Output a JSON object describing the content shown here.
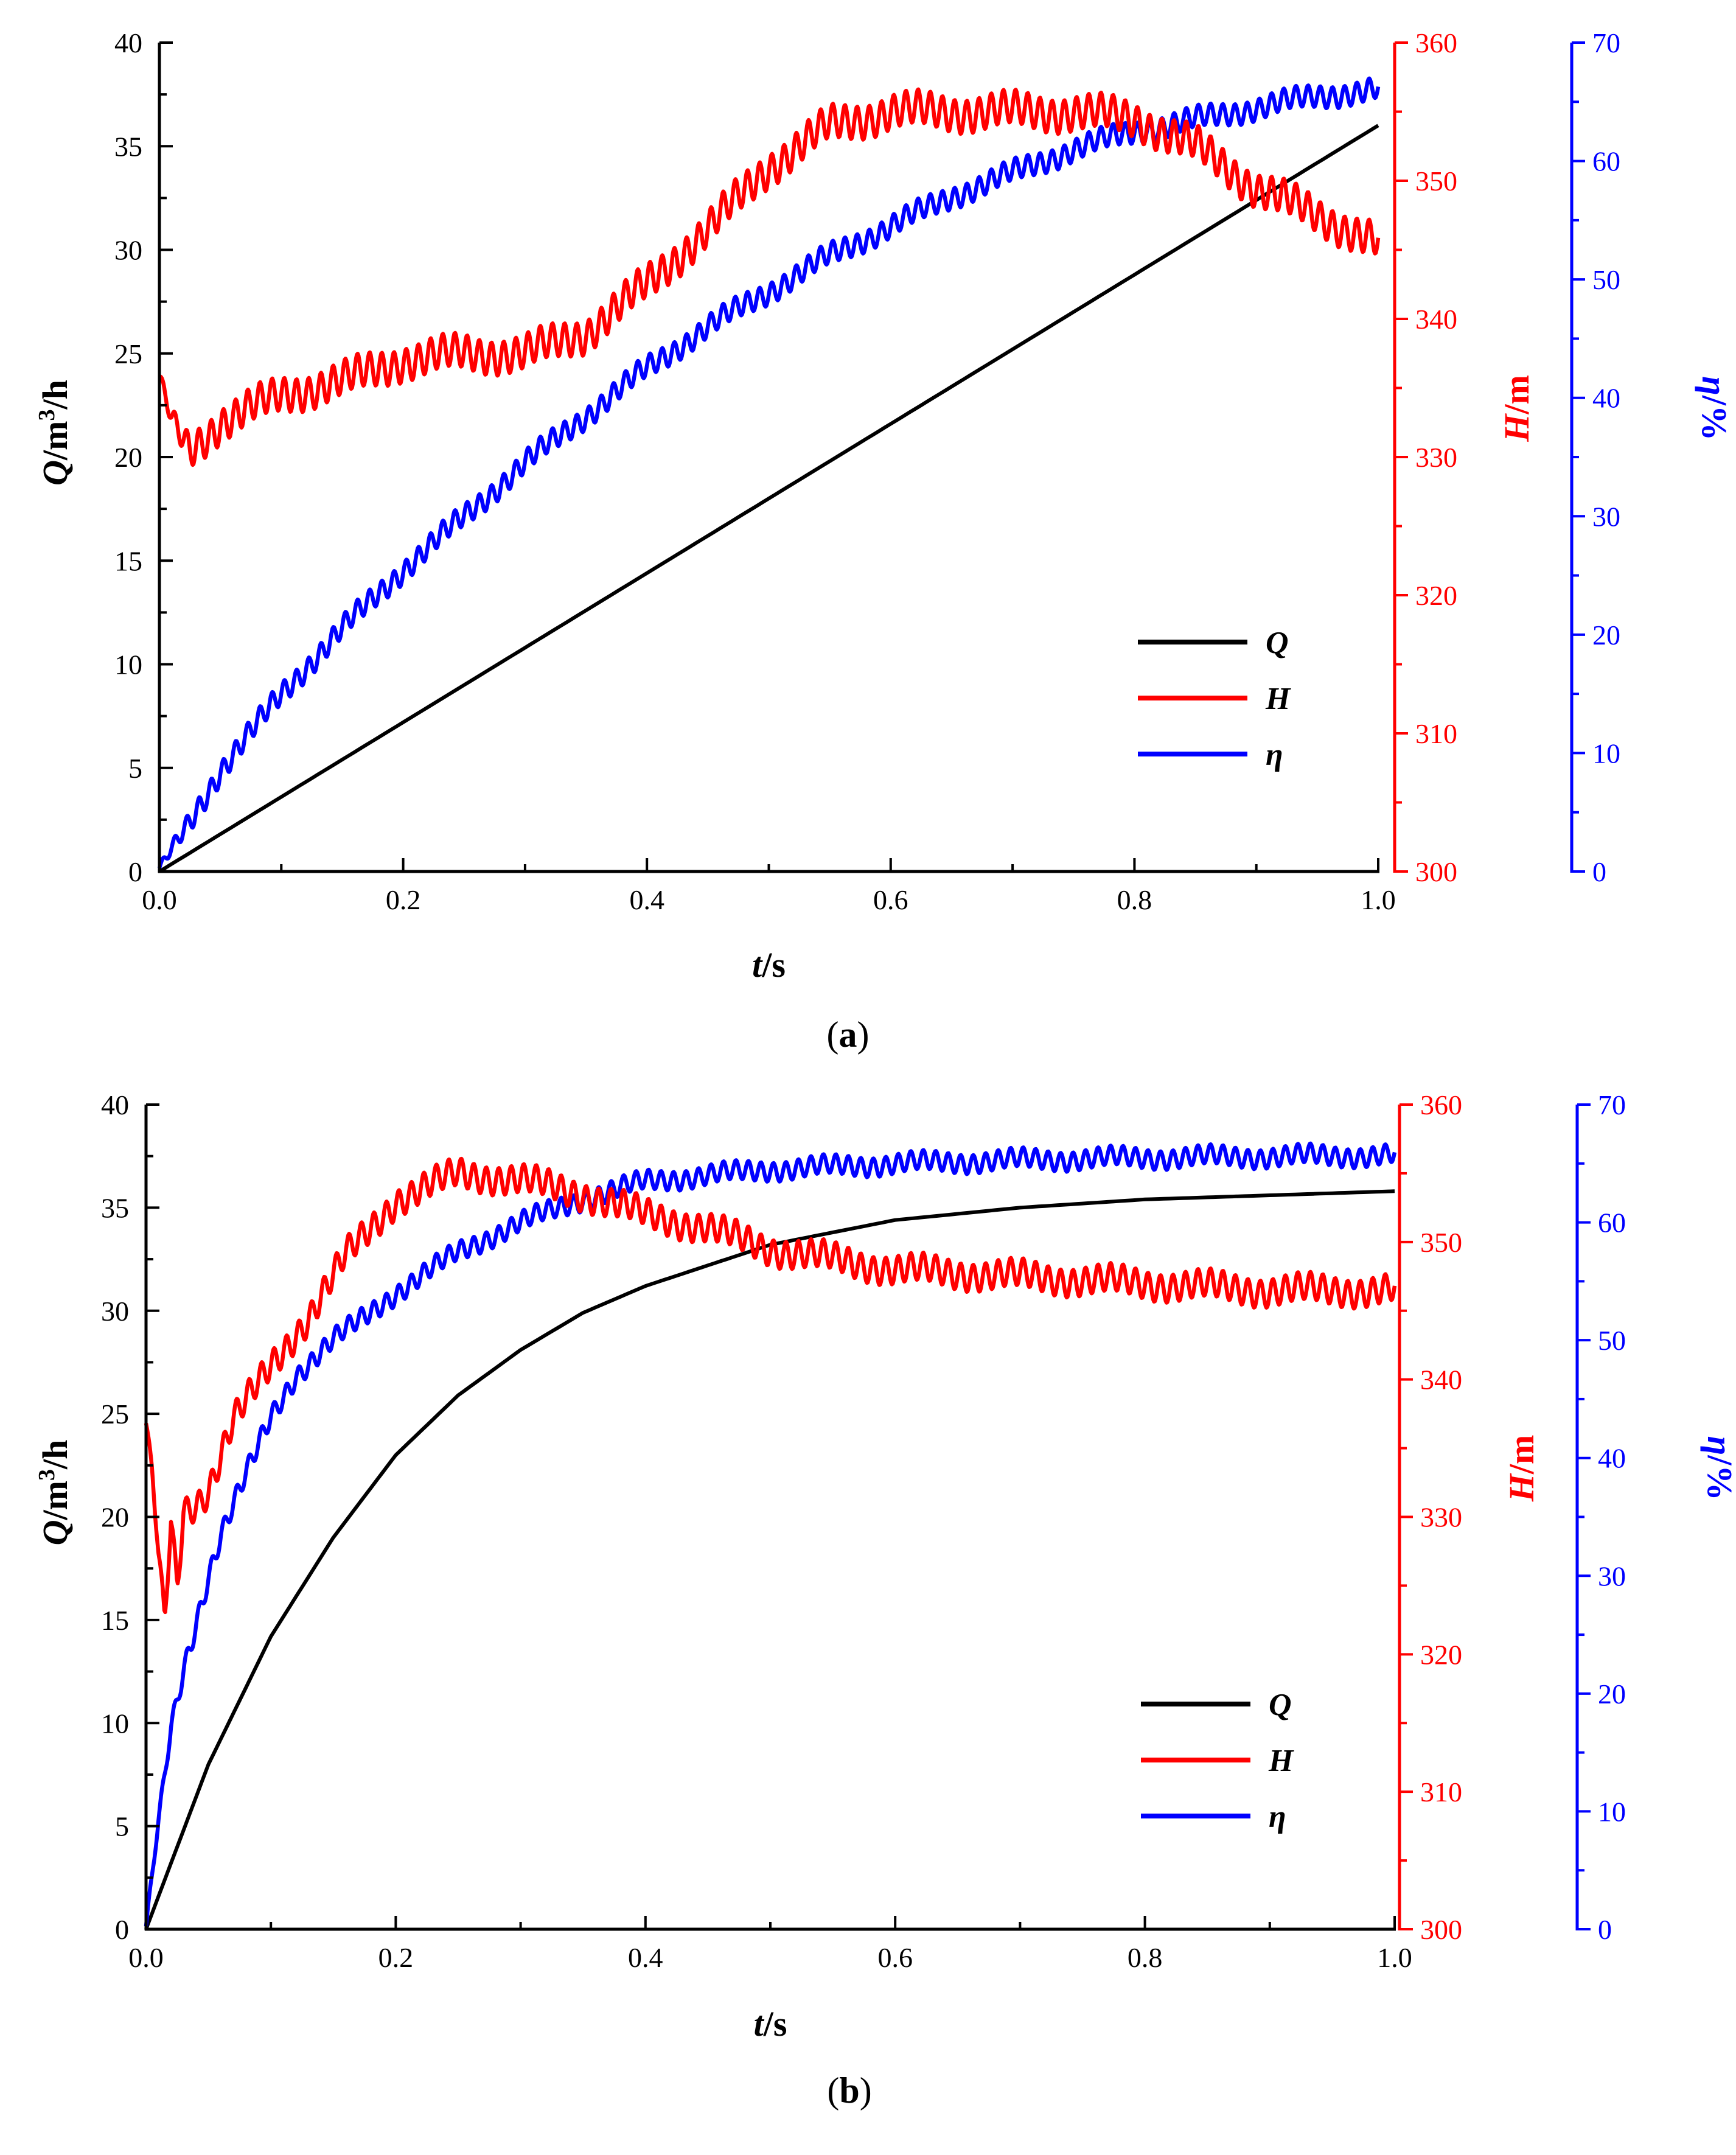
{
  "colors": {
    "Q": "#000000",
    "H": "#ff0000",
    "eta": "#0000ff"
  },
  "chart_data": [
    {
      "type": "line",
      "panel_caption": "(a)",
      "caption_parts": [
        "(",
        "a",
        ")"
      ],
      "x_range": [
        0,
        1
      ],
      "x_ticks": [
        "0.0",
        "0.2",
        "0.4",
        "0.6",
        "0.8",
        "1.0"
      ],
      "xlabel_parts": [
        "t",
        "/s"
      ],
      "ylim_left": [
        0,
        40
      ],
      "left_ticks": [
        "0",
        "5",
        "10",
        "15",
        "20",
        "25",
        "30",
        "35",
        "40"
      ],
      "ylabel_left_parts": [
        "Q",
        "/m",
        "3",
        "/h"
      ],
      "ylim_mid": [
        300,
        360
      ],
      "mid_ticks": [
        "300",
        "310",
        "320",
        "330",
        "340",
        "350",
        "360"
      ],
      "ylabel_mid_parts": [
        "H",
        "/m"
      ],
      "ylim_right": [
        0,
        70
      ],
      "right_ticks": [
        "0",
        "10",
        "20",
        "30",
        "40",
        "50",
        "60",
        "70"
      ],
      "ylabel_right_parts": [
        "η",
        "/%"
      ],
      "legend": [
        "Q",
        "H",
        "η"
      ],
      "series": [
        {
          "name": "Q",
          "axis": "left",
          "color": "#000000",
          "x": [
            0,
            0.1,
            0.2,
            0.3,
            0.4,
            0.5,
            0.6,
            0.7,
            0.8,
            0.9,
            1.0
          ],
          "values": [
            0,
            3.6,
            7.2,
            10.8,
            14.4,
            18,
            21.6,
            25.2,
            28.8,
            32.4,
            36
          ]
        },
        {
          "name": "H",
          "axis": "mid",
          "color": "#ff0000",
          "oscillation": 1.2,
          "x": [
            0,
            0.01,
            0.025,
            0.05,
            0.1,
            0.15,
            0.2,
            0.25,
            0.3,
            0.35,
            0.4,
            0.45,
            0.5,
            0.55,
            0.6,
            0.65,
            0.7,
            0.75,
            0.8,
            0.85,
            0.9,
            0.95,
            1.0
          ],
          "values": [
            335.5,
            332.5,
            330.5,
            332.5,
            334.5,
            335.5,
            337.0,
            337.5,
            337.5,
            339.0,
            342.5,
            346.5,
            351.0,
            354.0,
            355.0,
            355.0,
            355.0,
            355.0,
            354.5,
            352.5,
            349.5,
            347.5,
            345.5
          ]
        },
        {
          "name": "η",
          "axis": "right",
          "color": "#0000ff",
          "oscillation": 0.9,
          "x": [
            0,
            0.05,
            0.1,
            0.15,
            0.2,
            0.25,
            0.3,
            0.35,
            0.4,
            0.45,
            0.5,
            0.55,
            0.6,
            0.65,
            0.7,
            0.75,
            0.8,
            0.85,
            0.9,
            0.95,
            1.0
          ],
          "values": [
            0,
            8.5,
            15,
            20.5,
            25.5,
            30,
            34.5,
            38.5,
            42.5,
            46,
            49,
            52,
            54.5,
            57,
            59,
            61,
            62.5,
            63.5,
            64.5,
            65.5,
            66
          ]
        }
      ]
    },
    {
      "type": "line",
      "panel_caption": "(b)",
      "caption_parts": [
        "(",
        "b",
        ")"
      ],
      "x_range": [
        0,
        1
      ],
      "x_ticks": [
        "0.0",
        "0.2",
        "0.4",
        "0.6",
        "0.8",
        "1.0"
      ],
      "xlabel_parts": [
        "t",
        "/s"
      ],
      "ylim_left": [
        0,
        40
      ],
      "left_ticks": [
        "0",
        "5",
        "10",
        "15",
        "20",
        "25",
        "30",
        "35",
        "40"
      ],
      "ylabel_left_parts": [
        "Q",
        "/m",
        "3",
        "/h"
      ],
      "ylim_mid": [
        300,
        360
      ],
      "mid_ticks": [
        "300",
        "310",
        "320",
        "330",
        "340",
        "350",
        "360"
      ],
      "ylabel_mid_parts": [
        "H",
        "/m"
      ],
      "ylim_right": [
        0,
        70
      ],
      "right_ticks": [
        "0",
        "10",
        "20",
        "30",
        "40",
        "50",
        "60",
        "70"
      ],
      "ylabel_right_parts": [
        "η",
        "/%"
      ],
      "legend": [
        "Q",
        "H",
        "η"
      ],
      "series": [
        {
          "name": "Q",
          "axis": "left",
          "color": "#000000",
          "x": [
            0,
            0.05,
            0.1,
            0.15,
            0.2,
            0.25,
            0.3,
            0.35,
            0.4,
            0.5,
            0.6,
            0.7,
            0.8,
            0.9,
            1.0
          ],
          "values": [
            0,
            8,
            14.2,
            19,
            23,
            25.9,
            28.1,
            29.9,
            31.2,
            33.2,
            34.4,
            35,
            35.4,
            35.6,
            35.8
          ]
        },
        {
          "name": "H",
          "axis": "mid",
          "color": "#ff0000",
          "oscillation": 1.0,
          "x": [
            0,
            0.005,
            0.01,
            0.015,
            0.02,
            0.025,
            0.03,
            0.04,
            0.05,
            0.07,
            0.1,
            0.13,
            0.16,
            0.2,
            0.25,
            0.3,
            0.35,
            0.4,
            0.45,
            0.5,
            0.6,
            0.7,
            0.8,
            0.9,
            1.0
          ],
          "values": [
            336.5,
            333.0,
            327.0,
            322.5,
            329.5,
            325.0,
            330.5,
            331.0,
            332.0,
            337.0,
            341.0,
            344.5,
            349.0,
            353.0,
            355.0,
            354.5,
            353.5,
            352.0,
            351.0,
            349.5,
            348.0,
            347.5,
            347.0,
            346.5,
            346.5
          ]
        },
        {
          "name": "η",
          "axis": "right",
          "color": "#0000ff",
          "oscillation": 0.8,
          "x": [
            0,
            0.01,
            0.02,
            0.03,
            0.04,
            0.05,
            0.06,
            0.08,
            0.1,
            0.12,
            0.15,
            0.2,
            0.25,
            0.3,
            0.35,
            0.4,
            0.5,
            0.6,
            0.7,
            0.8,
            0.9,
            1.0
          ],
          "values": [
            0,
            9,
            17,
            22,
            26,
            30,
            33.5,
            38.5,
            43.5,
            47,
            50,
            54,
            57.5,
            60,
            62,
            63.5,
            64.5,
            65,
            65.3,
            65.5,
            65.6,
            65.7
          ]
        }
      ]
    }
  ]
}
